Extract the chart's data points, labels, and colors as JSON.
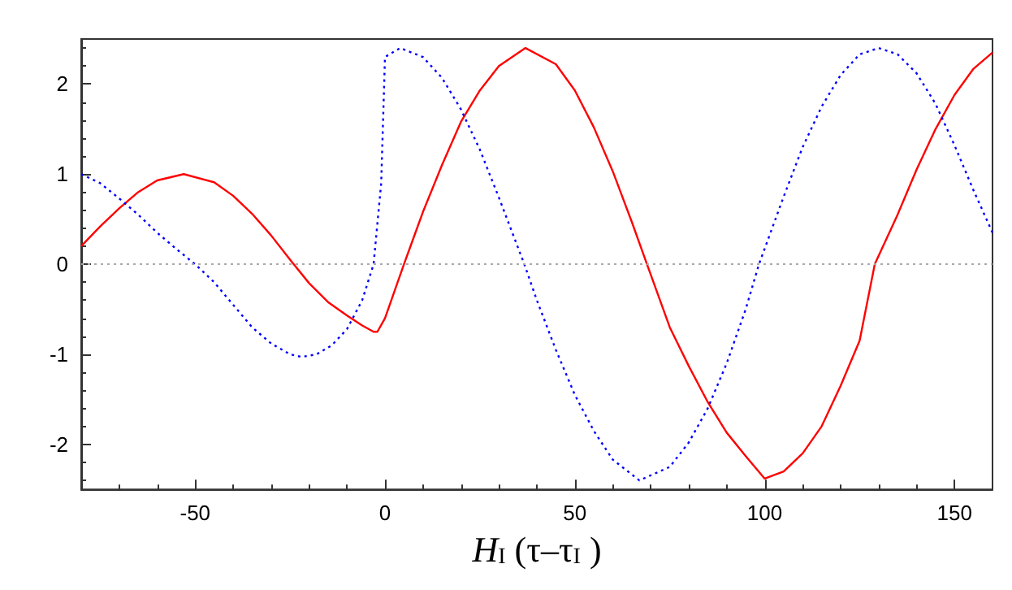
{
  "chart_data": {
    "type": "line",
    "xlabel": "H$_{I}$ (τ–τ$_{I}$ )",
    "xlim": [
      -80,
      160
    ],
    "xticks": [
      -50,
      0,
      50,
      100,
      150
    ],
    "ylim": [
      -2.5,
      2.5
    ],
    "yticks": [
      -2,
      -1,
      0,
      1,
      2
    ],
    "marker": "none",
    "ref_lines": [
      {
        "axis": "y",
        "value": 0,
        "color": "#aaaaaa",
        "line_style": "dotted"
      }
    ],
    "series": [
      {
        "color": "#ff0000",
        "line_style": "solid",
        "x": [
          -80,
          -75,
          -70,
          -65,
          -60,
          -53,
          -45,
          -40,
          -35,
          -30,
          -25,
          -20,
          -15,
          -10,
          -6,
          -3,
          -2,
          0,
          5,
          10,
          15,
          20,
          25,
          30,
          37,
          45,
          50,
          55,
          60,
          65,
          69,
          75,
          80,
          85,
          90,
          95,
          100,
          105,
          110,
          115,
          120,
          125,
          129,
          135,
          140,
          145,
          150,
          155,
          160
        ],
        "values": [
          0.2,
          0.42,
          0.62,
          0.8,
          0.93,
          1.0,
          0.91,
          0.76,
          0.56,
          0.32,
          0.05,
          -0.21,
          -0.42,
          -0.57,
          -0.68,
          -0.75,
          -0.75,
          -0.6,
          0,
          0.58,
          1.1,
          1.58,
          1.93,
          2.2,
          2.4,
          2.22,
          1.93,
          1.52,
          1.03,
          0.47,
          0,
          -0.7,
          -1.13,
          -1.53,
          -1.87,
          -2.13,
          -2.38,
          -2.3,
          -2.1,
          -1.8,
          -1.35,
          -0.85,
          0,
          0.55,
          1.05,
          1.5,
          1.88,
          2.17,
          2.35
        ]
      },
      {
        "color": "#0000ff",
        "line_style": "dotted",
        "x": [
          -80,
          -75,
          -70,
          -65,
          -60,
          -55,
          -50,
          -45,
          -40,
          -35,
          -30,
          -25,
          -22,
          -18,
          -14,
          -10,
          -6,
          -3,
          -1,
          0,
          4,
          10,
          15,
          20,
          25,
          30,
          36.7,
          40,
          45,
          50,
          55,
          60,
          67,
          75,
          80,
          85,
          90,
          95,
          98.5,
          105,
          110,
          115,
          120,
          125,
          130,
          135,
          140,
          145,
          150,
          155,
          160
        ],
        "values": [
          1.0,
          0.9,
          0.73,
          0.55,
          0.35,
          0.17,
          0,
          -0.2,
          -0.45,
          -0.7,
          -0.88,
          -1.0,
          -1.03,
          -1.0,
          -0.9,
          -0.72,
          -0.4,
          0,
          0.9,
          2.3,
          2.4,
          2.3,
          2.07,
          1.72,
          1.27,
          0.74,
          0,
          -0.4,
          -0.95,
          -1.45,
          -1.85,
          -2.17,
          -2.4,
          -2.25,
          -1.98,
          -1.6,
          -1.1,
          -0.5,
          0,
          0.75,
          1.3,
          1.75,
          2.1,
          2.33,
          2.4,
          2.33,
          2.12,
          1.78,
          1.32,
          0.82,
          0.35
        ]
      }
    ]
  }
}
